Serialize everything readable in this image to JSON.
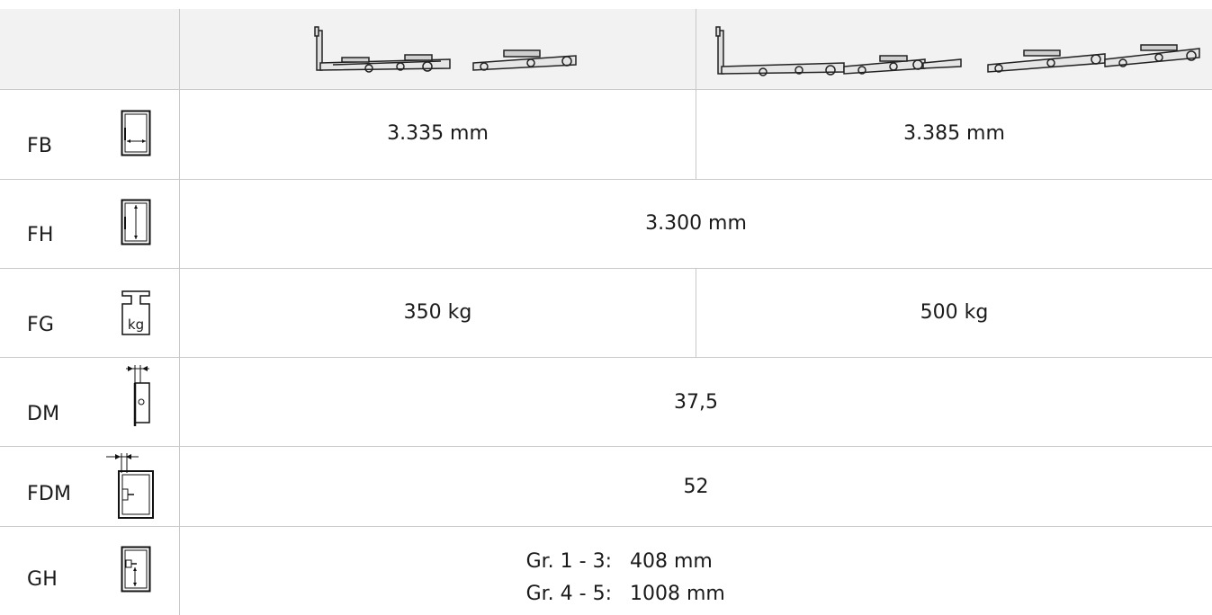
{
  "rows": [
    {
      "label": "FB",
      "icon": "width-icon",
      "values": [
        "3.335 mm",
        "3.385 mm"
      ]
    },
    {
      "label": "FH",
      "icon": "height-icon",
      "values": [
        "3.300 mm"
      ]
    },
    {
      "label": "FG",
      "icon": "weight-icon",
      "icon_text": "kg",
      "values": [
        "350 kg",
        "500 kg"
      ]
    },
    {
      "label": "DM",
      "icon": "backset-icon",
      "values": [
        "37,5"
      ]
    },
    {
      "label": "FDM",
      "icon": "sash-rebate-icon",
      "values": [
        "52"
      ]
    },
    {
      "label": "GH",
      "icon": "handle-height-icon",
      "lines": [
        {
          "key": "Gr. 1 - 3:",
          "value": "408 mm"
        },
        {
          "key": "Gr. 4 - 5:",
          "value": "1008 mm"
        }
      ]
    }
  ],
  "header": {
    "images": [
      "hardware-set-2-parts-image",
      "hardware-set-4-parts-image"
    ]
  }
}
